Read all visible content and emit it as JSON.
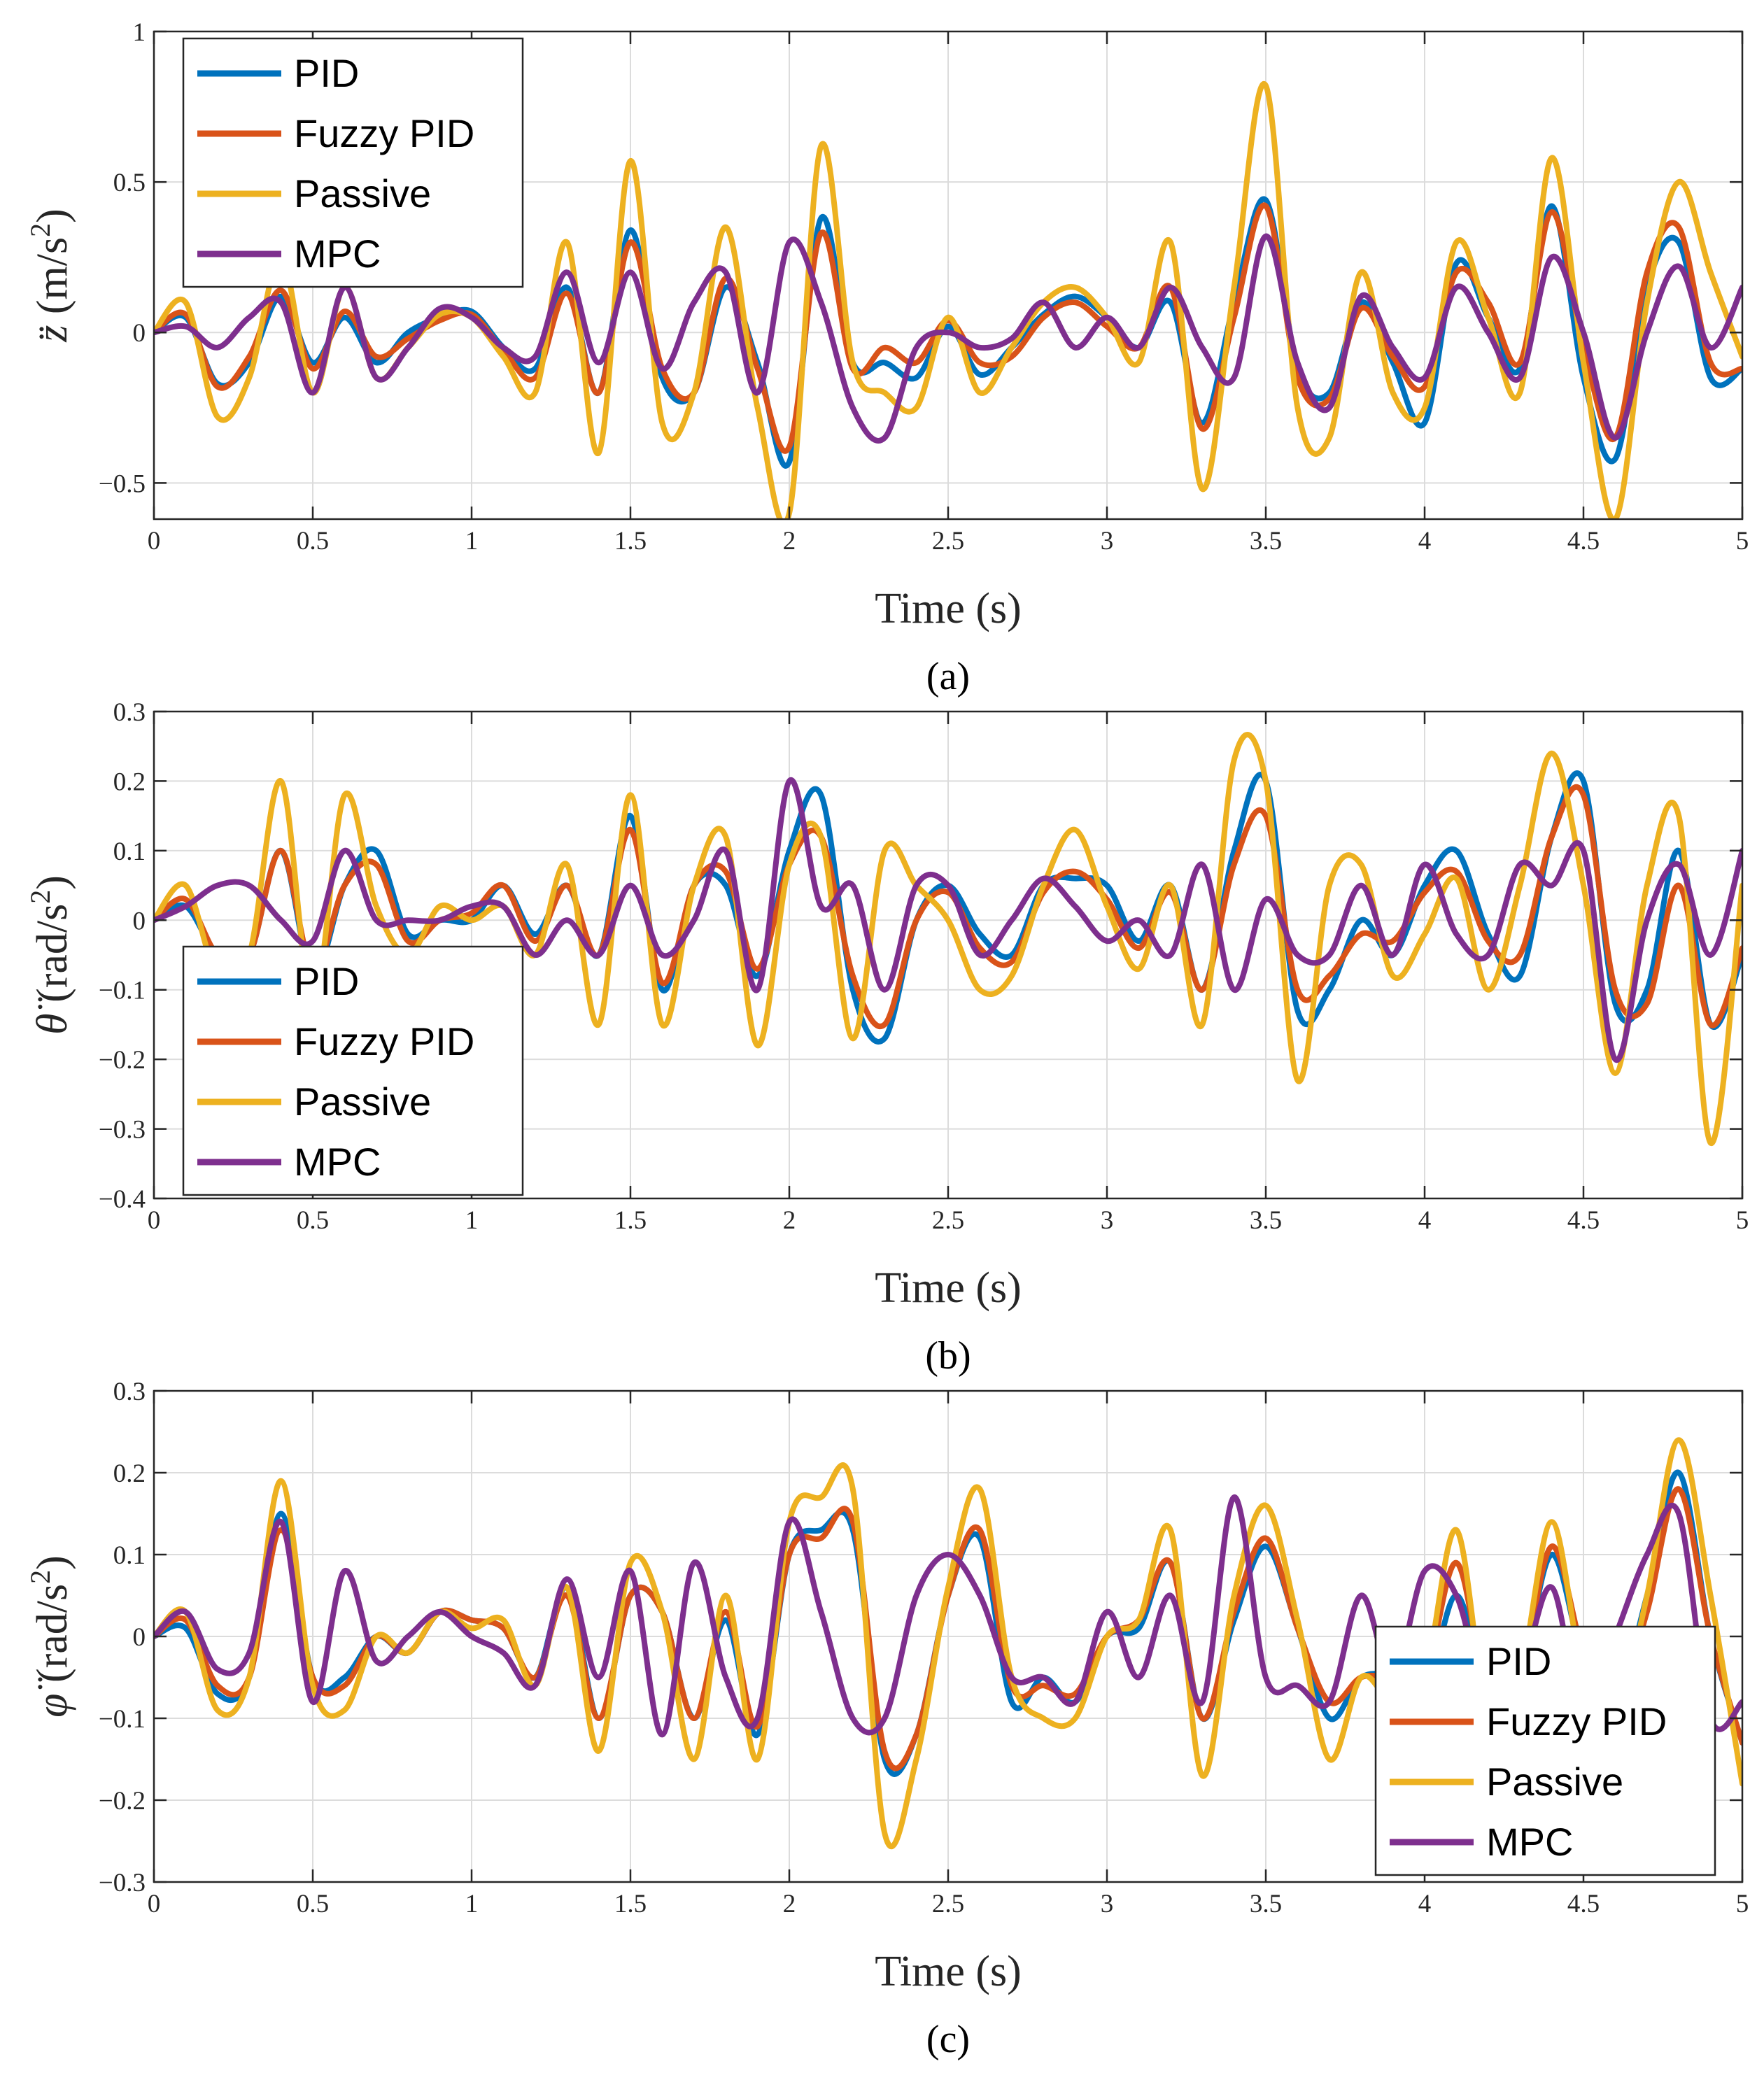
{
  "colors": {
    "PID": "#0072BD",
    "Fuzzy PID": "#D95319",
    "Passive": "#EDB120",
    "MPC": "#7E2F8E"
  },
  "chart_data": [
    {
      "type": "line",
      "caption": "(a)",
      "xlabel": "Time (s)",
      "ylabel": {
        "symbol": "z̈",
        "units_prefix": " (m/s",
        "units_exp": "2",
        "units_suffix": ")"
      },
      "xlim": [
        0,
        5
      ],
      "ylim": [
        -0.62,
        1
      ],
      "xticks": [
        0,
        0.5,
        1,
        1.5,
        2,
        2.5,
        3,
        3.5,
        4,
        4.5,
        5
      ],
      "xtick_labels": [
        "0",
        "0.5",
        "1",
        "1.5",
        "2",
        "2.5",
        "3",
        "3.5",
        "4",
        "4.5",
        "5"
      ],
      "yticks": [
        -0.5,
        0,
        0.5,
        1
      ],
      "ytick_labels": [
        "−0.5",
        "0",
        "0.5",
        "1"
      ],
      "legend": {
        "position": "top-left",
        "entries": [
          "PID",
          "Fuzzy PID",
          "Passive",
          "MPC"
        ]
      },
      "x": [
        0,
        0.1,
        0.2,
        0.3,
        0.4,
        0.5,
        0.6,
        0.7,
        0.8,
        0.9,
        1.0,
        1.1,
        1.2,
        1.3,
        1.4,
        1.5,
        1.6,
        1.7,
        1.8,
        1.9,
        2.0,
        2.1,
        2.2,
        2.3,
        2.4,
        2.5,
        2.6,
        2.7,
        2.8,
        2.9,
        3.0,
        3.1,
        3.2,
        3.3,
        3.4,
        3.5,
        3.6,
        3.7,
        3.8,
        3.9,
        4.0,
        4.1,
        4.2,
        4.3,
        4.4,
        4.5,
        4.6,
        4.7,
        4.8,
        4.9,
        5.0
      ],
      "series": [
        {
          "name": "PID",
          "values": [
            0,
            0.05,
            -0.17,
            -0.1,
            0.12,
            -0.1,
            0.05,
            -0.1,
            0,
            0.05,
            0.07,
            -0.05,
            -0.12,
            0.15,
            -0.2,
            0.34,
            -0.15,
            -0.2,
            0.15,
            -0.1,
            -0.43,
            0.38,
            -0.1,
            -0.1,
            -0.15,
            0.02,
            -0.14,
            -0.05,
            0.06,
            0.12,
            0.05,
            -0.05,
            0.1,
            -0.3,
            0.1,
            0.44,
            -0.12,
            -0.2,
            0.1,
            -0.1,
            -0.3,
            0.23,
            0.05,
            -0.12,
            0.42,
            -0.15,
            -0.42,
            0.15,
            0.3,
            -0.15,
            -0.12
          ]
        },
        {
          "name": "Fuzzy PID",
          "values": [
            0,
            0.06,
            -0.18,
            -0.08,
            0.14,
            -0.12,
            0.07,
            -0.08,
            -0.02,
            0.04,
            0.06,
            -0.06,
            -0.15,
            0.13,
            -0.2,
            0.3,
            -0.12,
            -0.2,
            0.18,
            -0.12,
            -0.38,
            0.33,
            -0.12,
            -0.05,
            -0.1,
            0.04,
            -0.1,
            -0.08,
            0.05,
            0.1,
            0.02,
            -0.05,
            0.15,
            -0.32,
            0.05,
            0.42,
            -0.15,
            -0.22,
            0.08,
            -0.08,
            -0.18,
            0.2,
            0.1,
            -0.1,
            0.4,
            -0.05,
            -0.35,
            0.2,
            0.35,
            -0.1,
            -0.12
          ]
        },
        {
          "name": "Passive",
          "values": [
            0,
            0.1,
            -0.28,
            -0.15,
            0.25,
            -0.2,
            0.15,
            -0.15,
            -0.05,
            0.06,
            0.05,
            -0.08,
            -0.2,
            0.3,
            -0.4,
            0.57,
            -0.3,
            -0.2,
            0.35,
            -0.25,
            -0.6,
            0.62,
            -0.1,
            -0.2,
            -0.25,
            0.05,
            -0.2,
            -0.05,
            0.1,
            0.15,
            0.05,
            -0.1,
            0.3,
            -0.52,
            0.15,
            0.82,
            -0.25,
            -0.35,
            0.2,
            -0.2,
            -0.25,
            0.3,
            0.05,
            -0.2,
            0.58,
            -0.1,
            -0.62,
            0.1,
            0.5,
            0.2,
            -0.08
          ]
        },
        {
          "name": "MPC",
          "values": [
            0,
            0.02,
            -0.05,
            0.05,
            0.1,
            -0.2,
            0.15,
            -0.15,
            -0.05,
            0.08,
            0.05,
            -0.05,
            -0.08,
            0.2,
            -0.1,
            0.2,
            -0.12,
            0.1,
            0.2,
            -0.2,
            0.3,
            0.1,
            -0.25,
            -0.35,
            -0.05,
            0,
            -0.05,
            -0.02,
            0.1,
            -0.05,
            0.05,
            -0.05,
            0.15,
            -0.05,
            -0.15,
            0.32,
            -0.1,
            -0.25,
            0.12,
            -0.05,
            -0.15,
            0.15,
            0,
            -0.15,
            0.25,
            0,
            -0.35,
            0,
            0.22,
            -0.05,
            0.15
          ]
        }
      ]
    },
    {
      "type": "line",
      "caption": "(b)",
      "xlabel": "Time (s)",
      "ylabel": {
        "symbol": "θ̈",
        "units_prefix": " (rad/s",
        "units_exp": "2",
        "units_suffix": ")"
      },
      "xlim": [
        0,
        5
      ],
      "ylim": [
        -0.4,
        0.3
      ],
      "xticks": [
        0,
        0.5,
        1,
        1.5,
        2,
        2.5,
        3,
        3.5,
        4,
        4.5,
        5
      ],
      "xtick_labels": [
        "0",
        "0.5",
        "1",
        "1.5",
        "2",
        "2.5",
        "3",
        "3.5",
        "4",
        "4.5",
        "5"
      ],
      "yticks": [
        -0.4,
        -0.3,
        -0.2,
        -0.1,
        0,
        0.1,
        0.2,
        0.3
      ],
      "ytick_labels": [
        "−0.4",
        "−0.3",
        "−0.2",
        "−0.1",
        "0",
        "0.1",
        "0.2",
        "0.3"
      ],
      "legend": {
        "position": "bottom-left",
        "entries": [
          "PID",
          "Fuzzy PID",
          "Passive",
          "MPC"
        ]
      },
      "x": [
        0,
        0.1,
        0.2,
        0.3,
        0.4,
        0.5,
        0.6,
        0.7,
        0.8,
        0.9,
        1.0,
        1.1,
        1.2,
        1.3,
        1.4,
        1.5,
        1.6,
        1.7,
        1.8,
        1.9,
        2.0,
        2.1,
        2.2,
        2.3,
        2.4,
        2.5,
        2.6,
        2.7,
        2.8,
        2.9,
        3.0,
        3.1,
        3.2,
        3.3,
        3.4,
        3.5,
        3.6,
        3.7,
        3.8,
        3.9,
        4.0,
        4.1,
        4.2,
        4.3,
        4.4,
        4.5,
        4.6,
        4.7,
        4.8,
        4.9,
        5.0
      ],
      "series": [
        {
          "name": "PID",
          "values": [
            0,
            0.02,
            -0.05,
            -0.05,
            0.1,
            -0.08,
            0.05,
            0.1,
            -0.02,
            0,
            0,
            0.05,
            -0.02,
            0.05,
            -0.05,
            0.15,
            -0.1,
            0.05,
            0.05,
            -0.08,
            0.1,
            0.18,
            -0.1,
            -0.17,
            0,
            0.05,
            -0.02,
            -0.05,
            0.05,
            0.06,
            0.05,
            -0.03,
            0.05,
            -0.1,
            0.1,
            0.2,
            -0.13,
            -0.1,
            0,
            -0.05,
            0.05,
            0.1,
            -0.02,
            -0.08,
            0.12,
            0.2,
            -0.12,
            -0.1,
            0.1,
            -0.15,
            -0.05
          ]
        },
        {
          "name": "Fuzzy PID",
          "values": [
            0,
            0.03,
            -0.05,
            -0.05,
            0.1,
            -0.07,
            0.05,
            0.08,
            -0.03,
            0,
            0.01,
            0.05,
            -0.03,
            0.05,
            -0.05,
            0.13,
            -0.09,
            0.05,
            0.07,
            -0.07,
            0.08,
            0.12,
            -0.08,
            -0.15,
            0,
            0.04,
            -0.04,
            -0.06,
            0.04,
            0.07,
            0.03,
            -0.04,
            0.04,
            -0.1,
            0.08,
            0.15,
            -0.1,
            -0.08,
            -0.02,
            -0.03,
            0.04,
            0.07,
            -0.03,
            -0.05,
            0.12,
            0.18,
            -0.1,
            -0.12,
            0.05,
            -0.15,
            -0.04
          ]
        },
        {
          "name": "Passive",
          "values": [
            0,
            0.05,
            -0.08,
            -0.05,
            0.2,
            -0.12,
            0.18,
            0.02,
            -0.05,
            0.02,
            0,
            0.02,
            -0.05,
            0.08,
            -0.15,
            0.18,
            -0.15,
            0.05,
            0.12,
            -0.18,
            0.08,
            0.12,
            -0.17,
            0.1,
            0.05,
            0,
            -0.1,
            -0.08,
            0.05,
            0.13,
            0.02,
            -0.07,
            0.05,
            -0.15,
            0.23,
            0.2,
            -0.23,
            0.05,
            0.08,
            -0.08,
            -0.02,
            0.06,
            -0.1,
            0.05,
            0.24,
            0.05,
            -0.22,
            0.05,
            0.15,
            -0.32,
            0.05
          ]
        },
        {
          "name": "MPC",
          "values": [
            0,
            0.02,
            0.05,
            0.05,
            0,
            -0.03,
            0.1,
            0,
            0,
            0,
            0.02,
            0.02,
            -0.05,
            0,
            -0.05,
            0.05,
            -0.05,
            0,
            0.1,
            -0.1,
            0.2,
            0.02,
            0.05,
            -0.1,
            0.05,
            0.05,
            -0.05,
            0,
            0.06,
            0.02,
            -0.03,
            0,
            -0.05,
            0.08,
            -0.1,
            0.03,
            -0.05,
            -0.05,
            0.05,
            -0.05,
            0.08,
            -0.02,
            -0.05,
            0.08,
            0.05,
            0.1,
            -0.2,
            0,
            0.08,
            -0.05,
            0.1
          ]
        }
      ]
    },
    {
      "type": "line",
      "caption": "(c)",
      "xlabel": "Time (s)",
      "ylabel": {
        "symbol": "φ̈",
        "units_prefix": " (rad/s",
        "units_exp": "2",
        "units_suffix": ")"
      },
      "xlim": [
        0,
        5
      ],
      "ylim": [
        -0.3,
        0.3
      ],
      "xticks": [
        0,
        0.5,
        1,
        1.5,
        2,
        2.5,
        3,
        3.5,
        4,
        4.5,
        5
      ],
      "xtick_labels": [
        "0",
        "0.5",
        "1",
        "1.5",
        "2",
        "2.5",
        "3",
        "3.5",
        "4",
        "4.5",
        "5"
      ],
      "yticks": [
        -0.3,
        -0.2,
        -0.1,
        0,
        0.1,
        0.2,
        0.3
      ],
      "ytick_labels": [
        "−0.3",
        "−0.2",
        "−0.1",
        "0",
        "0.1",
        "0.2",
        "0.3"
      ],
      "legend": {
        "position": "bottom-right",
        "entries": [
          "PID",
          "Fuzzy PID",
          "Passive",
          "MPC"
        ]
      },
      "x": [
        0,
        0.1,
        0.2,
        0.3,
        0.4,
        0.5,
        0.6,
        0.7,
        0.8,
        0.9,
        1.0,
        1.1,
        1.2,
        1.3,
        1.4,
        1.5,
        1.6,
        1.7,
        1.8,
        1.9,
        2.0,
        2.1,
        2.2,
        2.3,
        2.4,
        2.5,
        2.6,
        2.7,
        2.8,
        2.9,
        3.0,
        3.1,
        3.2,
        3.3,
        3.4,
        3.5,
        3.6,
        3.7,
        3.8,
        3.9,
        4.0,
        4.1,
        4.2,
        4.3,
        4.4,
        4.5,
        4.6,
        4.7,
        4.8,
        4.9,
        5.0
      ],
      "series": [
        {
          "name": "PID",
          "values": [
            0,
            0.01,
            -0.07,
            -0.05,
            0.15,
            -0.05,
            -0.05,
            0,
            -0.02,
            0.03,
            0.02,
            0.01,
            -0.05,
            0.06,
            -0.1,
            0.05,
            0.03,
            -0.1,
            0.02,
            -0.12,
            0.1,
            0.13,
            0.13,
            -0.15,
            -0.12,
            0.05,
            0.12,
            -0.08,
            -0.05,
            -0.08,
            0,
            0.01,
            0.09,
            -0.1,
            0.02,
            0.11,
            0.01,
            -0.1,
            -0.05,
            -0.05,
            -0.07,
            0.05,
            -0.07,
            -0.05,
            0.1,
            -0.03,
            -0.08,
            0.05,
            0.2,
            0,
            -0.13
          ]
        },
        {
          "name": "Fuzzy PID",
          "values": [
            0,
            0.02,
            -0.06,
            -0.05,
            0.13,
            -0.05,
            -0.06,
            0,
            -0.02,
            0.03,
            0.02,
            0.01,
            -0.05,
            0.05,
            -0.1,
            0.05,
            0.03,
            -0.1,
            0.03,
            -0.11,
            0.1,
            0.12,
            0.14,
            -0.14,
            -0.12,
            0.05,
            0.13,
            -0.06,
            -0.06,
            -0.07,
            0,
            0.02,
            0.09,
            -0.1,
            0.03,
            0.12,
            0.01,
            -0.08,
            -0.05,
            -0.05,
            -0.05,
            0.09,
            -0.07,
            -0.05,
            0.11,
            -0.02,
            -0.08,
            0.03,
            0.18,
            0,
            -0.13
          ]
        },
        {
          "name": "Passive",
          "values": [
            0,
            0.03,
            -0.09,
            -0.05,
            0.19,
            -0.06,
            -0.09,
            0,
            -0.02,
            0.03,
            0.01,
            0.02,
            -0.06,
            0.06,
            -0.14,
            0.09,
            0.03,
            -0.15,
            0.05,
            -0.15,
            0.14,
            0.17,
            0.18,
            -0.24,
            -0.15,
            0.06,
            0.18,
            -0.05,
            -0.1,
            -0.1,
            0,
            0.02,
            0.13,
            -0.17,
            0.05,
            0.16,
            0.02,
            -0.15,
            -0.05,
            -0.08,
            -0.05,
            0.13,
            -0.1,
            -0.05,
            0.14,
            -0.05,
            -0.1,
            0.05,
            0.24,
            0.05,
            -0.18
          ]
        },
        {
          "name": "MPC",
          "values": [
            0,
            0.03,
            -0.04,
            -0.02,
            0.14,
            -0.08,
            0.08,
            -0.03,
            0,
            0.03,
            0,
            -0.02,
            -0.06,
            0.07,
            -0.05,
            0.08,
            -0.12,
            0.09,
            -0.05,
            -0.1,
            0.14,
            0.03,
            -0.1,
            -0.1,
            0.05,
            0.1,
            0.05,
            -0.05,
            -0.05,
            -0.08,
            0.03,
            -0.05,
            0.05,
            -0.08,
            0.17,
            -0.05,
            -0.06,
            -0.08,
            0.05,
            -0.05,
            0.08,
            0.05,
            -0.08,
            -0.05,
            0.06,
            -0.1,
            0,
            0.1,
            0.15,
            -0.1,
            -0.08
          ]
        }
      ]
    }
  ]
}
